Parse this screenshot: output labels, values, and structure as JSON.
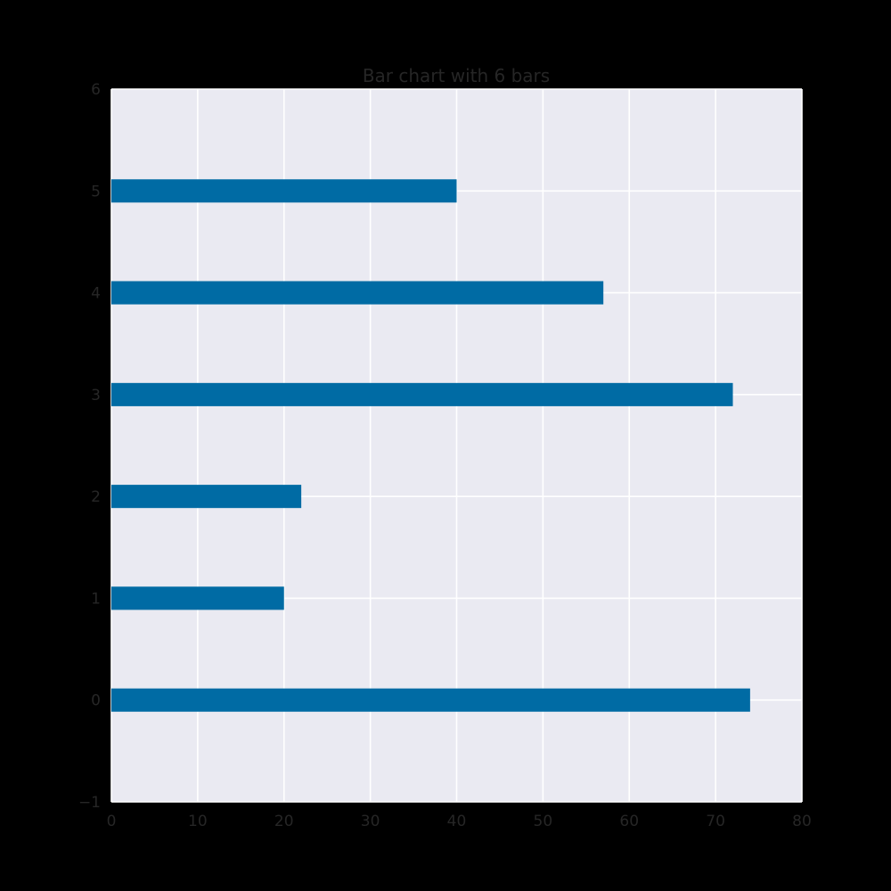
{
  "chart_data": {
    "type": "bar",
    "orientation": "horizontal",
    "title": "Bar chart with 6 bars",
    "xlabel": "",
    "ylabel": "",
    "categories": [
      0,
      1,
      2,
      3,
      4,
      5
    ],
    "values": [
      74,
      20,
      22,
      72,
      57,
      40
    ],
    "xlim": [
      0,
      80
    ],
    "ylim": [
      -1,
      6
    ],
    "x_ticks": [
      "0",
      "10",
      "20",
      "30",
      "40",
      "50",
      "60",
      "70",
      "80"
    ],
    "y_ticks": [
      "−1",
      "0",
      "1",
      "2",
      "3",
      "4",
      "5",
      "6"
    ],
    "grid": true,
    "legend": "none",
    "colors": {
      "bar": "#006BA4",
      "plot_background": "#EAEAF2",
      "grid": "#FFFFFF",
      "text": "#262626",
      "figure_background": "#000000"
    }
  }
}
